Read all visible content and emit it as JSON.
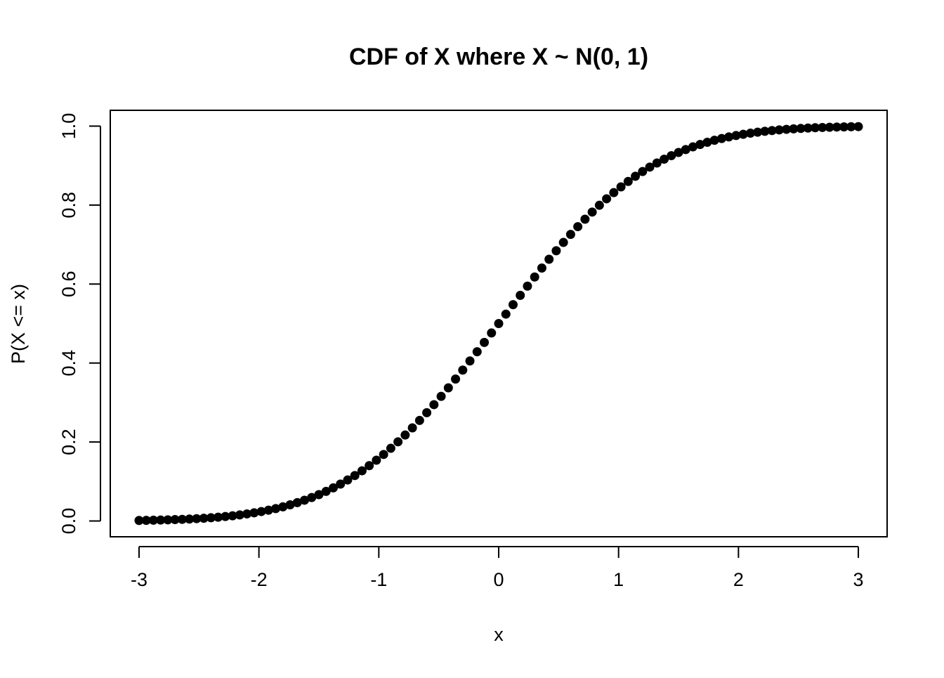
{
  "chart_data": {
    "type": "scatter",
    "title": "CDF of X where X ~ N(0, 1)",
    "xlabel": "x",
    "ylabel": "P(X <= x)",
    "xlim": [
      -3.24,
      3.24
    ],
    "ylim": [
      -0.04,
      1.04
    ],
    "x_ticks": [
      {
        "value": -3,
        "label": "-3"
      },
      {
        "value": -2,
        "label": "-2"
      },
      {
        "value": -1,
        "label": "-1"
      },
      {
        "value": 0,
        "label": "0"
      },
      {
        "value": 1,
        "label": "1"
      },
      {
        "value": 2,
        "label": "2"
      },
      {
        "value": 3,
        "label": "3"
      }
    ],
    "y_ticks": [
      {
        "value": 0.0,
        "label": "0.0"
      },
      {
        "value": 0.2,
        "label": "0.2"
      },
      {
        "value": 0.4,
        "label": "0.4"
      },
      {
        "value": 0.6,
        "label": "0.6"
      },
      {
        "value": 0.8,
        "label": "0.8"
      },
      {
        "value": 1.0,
        "label": "1.0"
      }
    ],
    "grid": false,
    "series": [
      {
        "color": "#000000",
        "x": [
          -3.0,
          -2.94,
          -2.88,
          -2.82,
          -2.76,
          -2.7,
          -2.64,
          -2.58,
          -2.52,
          -2.46,
          -2.4,
          -2.34,
          -2.28,
          -2.22,
          -2.16,
          -2.1,
          -2.04,
          -1.98,
          -1.92,
          -1.86,
          -1.8,
          -1.74,
          -1.68,
          -1.62,
          -1.56,
          -1.5,
          -1.44,
          -1.38,
          -1.32,
          -1.26,
          -1.2,
          -1.14,
          -1.08,
          -1.02,
          -0.96,
          -0.9,
          -0.84,
          -0.78,
          -0.72,
          -0.66,
          -0.6,
          -0.54,
          -0.48,
          -0.42,
          -0.36,
          -0.3,
          -0.24,
          -0.18,
          -0.12,
          -0.06,
          0.0,
          0.06,
          0.12,
          0.18,
          0.24,
          0.3,
          0.36,
          0.42,
          0.48,
          0.54,
          0.6,
          0.66,
          0.72,
          0.78,
          0.84,
          0.9,
          0.96,
          1.02,
          1.08,
          1.14,
          1.2,
          1.26,
          1.32,
          1.38,
          1.44,
          1.5,
          1.56,
          1.62,
          1.68,
          1.74,
          1.8,
          1.86,
          1.92,
          1.98,
          2.04,
          2.1,
          2.16,
          2.22,
          2.28,
          2.34,
          2.4,
          2.46,
          2.52,
          2.58,
          2.64,
          2.7,
          2.76,
          2.82,
          2.88,
          2.94,
          3.0
        ],
        "y": [
          0.0013,
          0.0016,
          0.002,
          0.0024,
          0.0029,
          0.0035,
          0.0041,
          0.0049,
          0.0059,
          0.0069,
          0.0082,
          0.0096,
          0.0113,
          0.0132,
          0.0154,
          0.0179,
          0.0207,
          0.0239,
          0.0274,
          0.0314,
          0.0359,
          0.0409,
          0.0465,
          0.0526,
          0.0594,
          0.0668,
          0.0749,
          0.0838,
          0.0934,
          0.1038,
          0.1151,
          0.1271,
          0.1401,
          0.1539,
          0.1685,
          0.1841,
          0.2005,
          0.2177,
          0.2358,
          0.2546,
          0.2743,
          0.2946,
          0.3156,
          0.3372,
          0.3594,
          0.3821,
          0.4052,
          0.4286,
          0.4522,
          0.4761,
          0.5,
          0.5239,
          0.5478,
          0.5714,
          0.5948,
          0.6179,
          0.6406,
          0.6628,
          0.6844,
          0.7054,
          0.7257,
          0.7454,
          0.7642,
          0.7823,
          0.7995,
          0.8159,
          0.8315,
          0.8461,
          0.8599,
          0.8729,
          0.8849,
          0.8962,
          0.9066,
          0.9162,
          0.9251,
          0.9332,
          0.9406,
          0.9474,
          0.9535,
          0.9591,
          0.9641,
          0.9686,
          0.9726,
          0.9761,
          0.9793,
          0.9821,
          0.9846,
          0.9868,
          0.9887,
          0.9904,
          0.9918,
          0.9931,
          0.9941,
          0.9951,
          0.9959,
          0.9965,
          0.9971,
          0.9976,
          0.998,
          0.9984,
          0.9987
        ]
      }
    ]
  }
}
